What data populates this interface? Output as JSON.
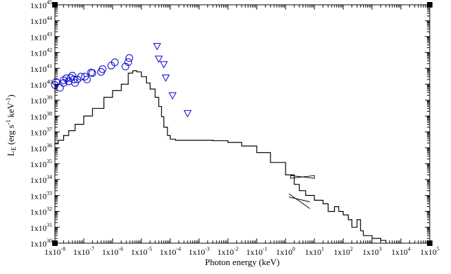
{
  "chart_data": {
    "type": "line",
    "title": "",
    "xlabel": "Photon energy (keV)",
    "ylabel": {
      "main": "L",
      "sub": "E",
      "unit_open": " (erg s",
      "unit_exp1": "-1",
      "unit_mid": " keV",
      "unit_exp2": "-1",
      "unit_close": ")"
    },
    "x_scale": "log",
    "y_scale": "log",
    "xlim": [
      1e-08,
      100000.0
    ],
    "ylim": [
      1e+30,
      1e+45
    ],
    "x_tick_exponents": [
      -8,
      -7,
      -6,
      -5,
      -4,
      -3,
      -2,
      -1,
      0,
      1,
      2,
      3,
      4,
      5
    ],
    "y_tick_exponents": [
      30,
      31,
      32,
      33,
      34,
      35,
      36,
      37,
      38,
      39,
      40,
      41,
      42,
      43,
      44,
      45
    ],
    "tick_base": "1x10",
    "grid": false,
    "legend": "none",
    "series": [
      {
        "kind": "step",
        "color": "#000000",
        "points": [
          [
            1e-08,
            1.8e+36
          ],
          [
            1.3e-08,
            3e+36
          ],
          [
            2e-08,
            6e+36
          ],
          [
            3e-08,
            1.2e+37
          ],
          [
            5e-08,
            3e+37
          ],
          [
            1e-07,
            1e+38
          ],
          [
            2e-07,
            3e+38
          ],
          [
            5e-07,
            1.5e+39
          ],
          [
            1e-06,
            4e+39
          ],
          [
            2e-06,
            1e+40
          ],
          [
            3.5e-06,
            5e+40
          ],
          [
            5e-06,
            7e+40
          ],
          [
            7e-06,
            6e+40
          ],
          [
            1e-05,
            3e+40
          ],
          [
            1.5e-05,
            1.2e+40
          ],
          [
            2e-05,
            5e+39
          ],
          [
            3e-05,
            1.5e+39
          ],
          [
            4e-05,
            4e+38
          ],
          [
            5e-05,
            9e+37
          ],
          [
            6e-05,
            2e+37
          ],
          [
            8e-05,
            6e+36
          ],
          [
            0.0001,
            3.5e+36
          ],
          [
            0.00015,
            3e+36
          ],
          [
            0.0003,
            3e+36
          ],
          [
            0.001,
            3e+36
          ],
          [
            0.003,
            2.8e+36
          ],
          [
            0.01,
            2.2e+36
          ],
          [
            0.03,
            1.3e+36
          ],
          [
            0.1,
            5e+35
          ],
          [
            0.3,
            1.2e+35
          ],
          [
            1,
            2e+34
          ],
          [
            2,
            5e+33
          ],
          [
            3,
            2e+33
          ],
          [
            5,
            1e+33
          ],
          [
            10.0,
            5e+32
          ],
          [
            20.0,
            3e+32
          ],
          [
            30.0,
            1e+32
          ],
          [
            50.0,
            2e+32
          ],
          [
            70.0,
            1e+32
          ],
          [
            100.0,
            6e+31
          ],
          [
            150.0,
            3e+31
          ],
          [
            200.0,
            1e+31
          ],
          [
            300.0,
            3e+31
          ],
          [
            400.0,
            6e+30
          ],
          [
            500.0,
            3e+30
          ],
          [
            1000.0,
            2e+30
          ],
          [
            2000.0,
            1.5e+30
          ],
          [
            3000.0,
            1e+30
          ]
        ]
      },
      {
        "kind": "circles",
        "color": "#0000cc",
        "points": [
          [
            1e-08,
            9e+39
          ],
          [
            1.1e-08,
            1.4e+40
          ],
          [
            1.5e-08,
            6e+39
          ],
          [
            2e-08,
            1.8e+40
          ],
          [
            2e-08,
            1.2e+40
          ],
          [
            2.5e-08,
            2.4e+40
          ],
          [
            3e-08,
            1.5e+40
          ],
          [
            3.5e-08,
            2.5e+40
          ],
          [
            4e-08,
            3.5e+40
          ],
          [
            4.5e-08,
            2e+40
          ],
          [
            5e-08,
            1.2e+40
          ],
          [
            6e-08,
            2e+40
          ],
          [
            8e-08,
            3e+40
          ],
          [
            1.1e-07,
            3e+40
          ],
          [
            1.3e-07,
            2e+40
          ],
          [
            1.8e-07,
            5.5e+40
          ],
          [
            2e-07,
            5e+40
          ],
          [
            4e-07,
            6e+40
          ],
          [
            4.5e-07,
            9e+40
          ],
          [
            9e-07,
            1.5e+41
          ],
          [
            1.2e-06,
            2.4e+41
          ],
          [
            2.8e-06,
            1.3e+41
          ],
          [
            3.5e-06,
            2.5e+41
          ],
          [
            3.8e-06,
            4.5e+41
          ]
        ]
      },
      {
        "kind": "triangles",
        "color": "#0000cc",
        "points": [
          [
            3.5e-05,
            2.5e+42
          ],
          [
            4e-05,
            4e+41
          ],
          [
            6e-05,
            1.8e+41
          ],
          [
            7e-05,
            2.6e+40
          ],
          [
            0.00012,
            2e+39
          ],
          [
            0.0004,
            1.5e+38
          ]
        ]
      },
      {
        "kind": "bowtie",
        "color": "#000000",
        "x": [
          1.5,
          10
        ],
        "y_upper": [
          1.8e+34,
          1.8e+34
        ],
        "y_lower": [
          1.2e+34,
          1.2e+34
        ]
      },
      {
        "kind": "powerlaw",
        "color": "#000000",
        "x": [
          1.3,
          7
        ],
        "y_top": [
          1.3e+33,
          4e+32
        ],
        "y_bottom": [
          8e+32,
          1.5e+32
        ]
      }
    ]
  }
}
